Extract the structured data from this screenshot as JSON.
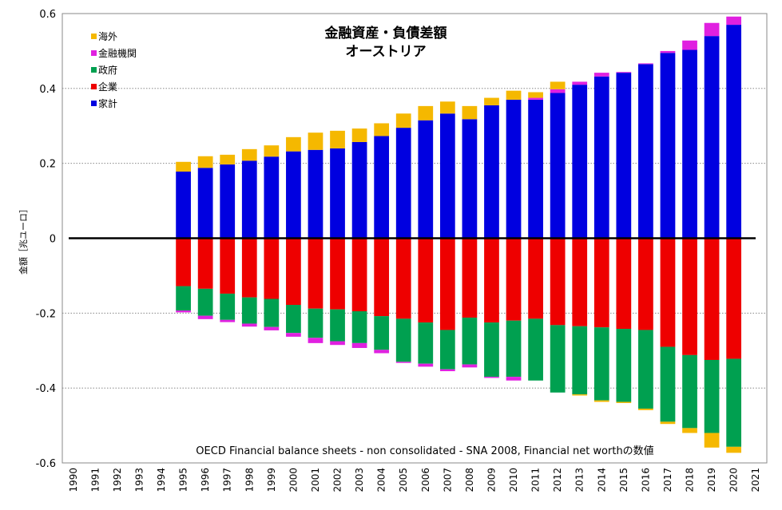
{
  "chart_data": {
    "type": "bar",
    "stacked": true,
    "title": [
      "金融資産・負債差額",
      "オーストリア"
    ],
    "ylabel": "金額［兆ユーロ］",
    "xlabel": "",
    "note": "OECD Financial balance sheets - non consolidated - SNA 2008, Financial net worthの数値",
    "ylim": [
      -0.6,
      0.6
    ],
    "yticks": [
      0.6,
      0.4,
      0.2,
      0,
      -0.2,
      -0.4,
      -0.6
    ],
    "ytick_labels": [
      "0.6",
      "0.4",
      "0.2",
      "0",
      "-0.2",
      "-0.4",
      "-0.6"
    ],
    "categories": [
      "1990",
      "1991",
      "1992",
      "1993",
      "1994",
      "1995",
      "1996",
      "1997",
      "1998",
      "1999",
      "2000",
      "2001",
      "2002",
      "2003",
      "2004",
      "2005",
      "2006",
      "2007",
      "2008",
      "2009",
      "2010",
      "2011",
      "2012",
      "2013",
      "2014",
      "2015",
      "2016",
      "2017",
      "2018",
      "2019",
      "2020",
      "2021"
    ],
    "legend_position": "top-left",
    "series": [
      {
        "name": "海外",
        "color": "#f5b800",
        "values": [
          null,
          null,
          null,
          null,
          null,
          0.026,
          0.031,
          0.026,
          0.031,
          0.03,
          0.038,
          0.046,
          0.047,
          0.036,
          0.034,
          0.038,
          0.038,
          0.032,
          0.035,
          0.02,
          0.024,
          0.015,
          0.02,
          -0.003,
          -0.004,
          -0.003,
          -0.004,
          -0.006,
          -0.013,
          -0.039,
          -0.016,
          null
        ]
      },
      {
        "name": "金融機関",
        "color": "#e020e0",
        "values": [
          null,
          null,
          null,
          null,
          null,
          -0.005,
          -0.009,
          -0.006,
          -0.008,
          -0.009,
          -0.01,
          -0.014,
          -0.01,
          -0.013,
          -0.009,
          -0.003,
          -0.008,
          -0.005,
          -0.008,
          -0.003,
          -0.01,
          0.005,
          0.01,
          0.008,
          0.01,
          0.002,
          0.002,
          0.005,
          0.025,
          0.035,
          0.022,
          null
        ]
      },
      {
        "name": "政府",
        "color": "#00a050",
        "values": [
          null,
          null,
          null,
          null,
          null,
          -0.065,
          -0.072,
          -0.07,
          -0.07,
          -0.075,
          -0.075,
          -0.078,
          -0.085,
          -0.085,
          -0.09,
          -0.115,
          -0.11,
          -0.105,
          -0.125,
          -0.145,
          -0.15,
          -0.165,
          -0.18,
          -0.182,
          -0.195,
          -0.195,
          -0.21,
          -0.2,
          -0.195,
          -0.195,
          -0.235,
          null
        ]
      },
      {
        "name": "企業",
        "color": "#ee0000",
        "values": [
          null,
          null,
          null,
          null,
          null,
          -0.128,
          -0.135,
          -0.148,
          -0.158,
          -0.162,
          -0.178,
          -0.188,
          -0.19,
          -0.195,
          -0.208,
          -0.215,
          -0.225,
          -0.245,
          -0.212,
          -0.225,
          -0.22,
          -0.215,
          -0.232,
          -0.235,
          -0.238,
          -0.242,
          -0.245,
          -0.29,
          -0.312,
          -0.325,
          -0.322,
          null
        ]
      },
      {
        "name": "家計",
        "color": "#0000e0",
        "values": [
          null,
          null,
          null,
          null,
          null,
          0.178,
          0.188,
          0.197,
          0.207,
          0.218,
          0.232,
          0.236,
          0.24,
          0.257,
          0.273,
          0.295,
          0.315,
          0.333,
          0.318,
          0.355,
          0.37,
          0.37,
          0.388,
          0.41,
          0.432,
          0.442,
          0.465,
          0.495,
          0.503,
          0.54,
          0.57,
          null
        ]
      }
    ]
  }
}
